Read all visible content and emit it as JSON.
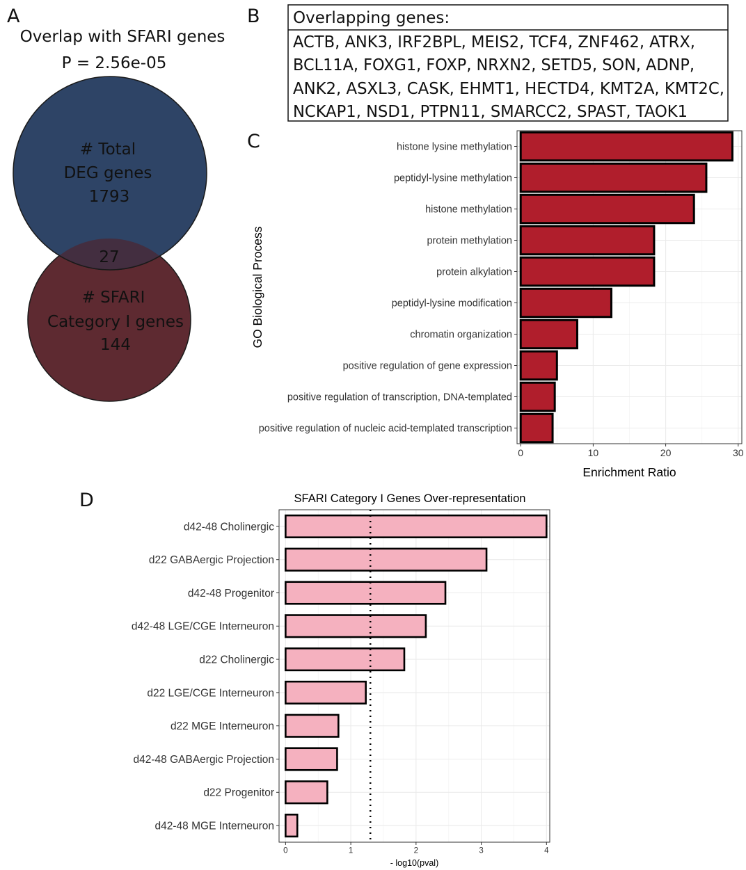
{
  "panels": {
    "a": "A",
    "b": "B",
    "c": "C",
    "d": "D"
  },
  "venn": {
    "title": "Overlap with SFARI genes",
    "pvalue": "P = 2.56e-05",
    "total": {
      "label_line1": "# Total",
      "label_line2": "DEG genes",
      "count": "1793",
      "color": "#2e4466"
    },
    "sfari": {
      "label_line1": "# SFARI",
      "label_line2": "Category I genes",
      "count": "144",
      "color": "#5e2a31"
    },
    "overlap_count": "27",
    "overlap_color": "#432e40"
  },
  "gene_box": {
    "header": "Overlapping genes:",
    "lines": [
      "ACTB,  ANK3, IRF2BPL, MEIS2, TCF4, ZNF462, ATRX,",
      "BCL11A, FOXG1, FOXP, NRXN2, SETD5, SON, ADNP,",
      "ANK2, ASXL3, CASK, EHMT1, HECTD4, KMT2A, KMT2C,",
      "NCKAP1, NSD1, PTPN11, SMARCC2, SPAST, TAOK1"
    ]
  },
  "chart_data": [
    {
      "type": "bar",
      "orientation": "horizontal",
      "title": "",
      "xlabel": "Enrichment Ratio",
      "ylabel": "GO Biological Process",
      "xlim": [
        -0.5,
        30.5
      ],
      "xticks": [
        0,
        10,
        20,
        30
      ],
      "grid": true,
      "bar_color": "#b01e2c",
      "categories": [
        "histone lysine methylation",
        "peptidyl-lysine methylation",
        "histone methylation",
        "protein methylation",
        "protein alkylation",
        "peptidyl-lysine modification",
        "chromatin organization",
        "positive regulation of gene expression",
        "positive regulation of transcription, DNA-templated",
        "positive regulation of nucleic acid-templated transcription"
      ],
      "values": [
        29.2,
        25.6,
        23.9,
        18.4,
        18.4,
        12.5,
        7.8,
        5.0,
        4.7,
        4.4
      ]
    },
    {
      "type": "bar",
      "orientation": "horizontal",
      "title": "SFARI Category I Genes Over-representation",
      "xlabel": "- log10(pval)",
      "ylabel": "",
      "xlim": [
        -0.1,
        4.05
      ],
      "xticks": [
        0,
        1,
        2,
        3,
        4
      ],
      "grid": true,
      "bar_color": "#f5b1bf",
      "threshold": 1.3,
      "categories": [
        "d42-48 Cholinergic",
        "d22 GABAergic Projection",
        "d42-48 Progenitor",
        "d42-48 LGE/CGE Interneuron",
        "d22 Cholinergic",
        "d22 LGE/CGE Interneuron",
        "d22 MGE Interneuron",
        "d42-48 GABAergic Projection",
        "d22 Progenitor",
        "d42-48 MGE Interneuron"
      ],
      "values": [
        4.0,
        3.08,
        2.45,
        2.15,
        1.82,
        1.23,
        0.81,
        0.79,
        0.64,
        0.18
      ]
    }
  ]
}
